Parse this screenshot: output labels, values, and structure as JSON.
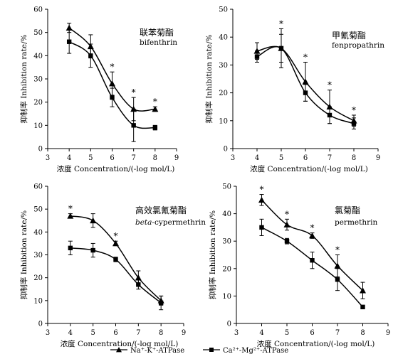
{
  "chart_data": [
    {
      "type": "line",
      "title": "联苯菊酯",
      "subtitle": "bifenthrin",
      "xlabel": "浓度 Concentration/(-log mol/L)",
      "ylabel": "抑制率 Inhibition rate/%",
      "xlim": [
        3,
        9
      ],
      "ylim": [
        0,
        60
      ],
      "xticks": [
        3,
        4,
        5,
        6,
        7,
        8,
        9
      ],
      "yticks": [
        0,
        10,
        20,
        30,
        40,
        50,
        60
      ],
      "x": [
        4,
        5,
        6,
        7,
        8
      ],
      "significance_x": [
        6,
        7,
        8
      ],
      "series": [
        {
          "name": "Na⁺-K⁺-ATPase",
          "marker": "triangle",
          "values": [
            52,
            44,
            28,
            17,
            17
          ],
          "error": [
            2,
            5,
            5,
            5,
            1
          ]
        },
        {
          "name": "Ca²⁺-Mg²⁺-ATPase",
          "marker": "square",
          "values": [
            46,
            40,
            22,
            10,
            9
          ],
          "error": [
            5,
            5,
            4,
            7,
            1
          ]
        }
      ]
    },
    {
      "type": "line",
      "title": "甲氰菊酯",
      "subtitle": "fenpropathrin",
      "xlabel": "浓度 Concentration/(-log mol/L)",
      "ylabel": "抑制率 Inhibition rate/%",
      "xlim": [
        3,
        9
      ],
      "ylim": [
        0,
        50
      ],
      "xticks": [
        3,
        4,
        5,
        6,
        7,
        8,
        9
      ],
      "yticks": [
        0,
        10,
        20,
        30,
        40,
        50
      ],
      "x": [
        4,
        5,
        6,
        7,
        8
      ],
      "significance_x": [
        5,
        6,
        7,
        8
      ],
      "series": [
        {
          "name": "Na⁺-K⁺-ATPase",
          "marker": "triangle",
          "values": [
            35,
            36,
            24,
            15,
            10
          ],
          "error": [
            3,
            7,
            7,
            6,
            2
          ]
        },
        {
          "name": "Ca²⁺-Mg²⁺-ATPase",
          "marker": "square",
          "values": [
            33,
            36,
            20,
            12,
            9
          ],
          "error": [
            2,
            5,
            3,
            3,
            2
          ]
        }
      ]
    },
    {
      "type": "line",
      "title": "高效氯氰菊酯",
      "subtitle": "beta-cypermethrin",
      "subtitle_parts": [
        "beta",
        "-cypermethrin"
      ],
      "xlabel": "浓度 Concentration/(-log mol/L)",
      "ylabel": "抑制率 Inhibition rate/%",
      "xlim": [
        3,
        9
      ],
      "ylim": [
        0,
        60
      ],
      "xticks": [
        3,
        4,
        5,
        6,
        7,
        8,
        9
      ],
      "yticks": [
        0,
        10,
        20,
        30,
        40,
        50,
        60
      ],
      "x": [
        4,
        5,
        6,
        7,
        8
      ],
      "significance_x": [
        4,
        6
      ],
      "series": [
        {
          "name": "Na⁺-K⁺-ATPase",
          "marker": "triangle",
          "values": [
            47,
            45,
            35,
            20,
            10
          ],
          "error": [
            1,
            3,
            1,
            3,
            2
          ]
        },
        {
          "name": "Ca²⁺-Mg²⁺-ATPase",
          "marker": "square",
          "values": [
            33,
            32,
            28,
            17,
            9
          ],
          "error": [
            3,
            3,
            1,
            2,
            3
          ]
        }
      ]
    },
    {
      "type": "line",
      "title": "氯菊酯",
      "subtitle": "permethrin",
      "xlabel": "浓度 Concentration/(-log mol/L)",
      "ylabel": "抑制率 Inhibition rate/%",
      "xlim": [
        3,
        9
      ],
      "ylim": [
        0,
        50
      ],
      "xticks": [
        3,
        4,
        5,
        6,
        7,
        8,
        9
      ],
      "yticks": [
        0,
        10,
        20,
        30,
        40,
        50
      ],
      "x": [
        4,
        5,
        6,
        7,
        8
      ],
      "significance_x": [
        4,
        5,
        6,
        7
      ],
      "series": [
        {
          "name": "Na⁺-K⁺-ATPase",
          "marker": "triangle",
          "values": [
            45,
            36,
            32,
            21,
            12
          ],
          "error": [
            2,
            2,
            1,
            4,
            3
          ]
        },
        {
          "name": "Ca²⁺-Mg²⁺-ATPase",
          "marker": "square",
          "values": [
            35,
            30,
            23,
            16,
            6
          ],
          "error": [
            3,
            1,
            3,
            4,
            0
          ]
        }
      ]
    }
  ],
  "legend": {
    "placement": "bottom",
    "items": [
      {
        "label": "Na⁺-K⁺-ATPase",
        "marker": "triangle"
      },
      {
        "label": "Ca²⁺-Mg²⁺-ATPase",
        "marker": "square"
      }
    ]
  }
}
